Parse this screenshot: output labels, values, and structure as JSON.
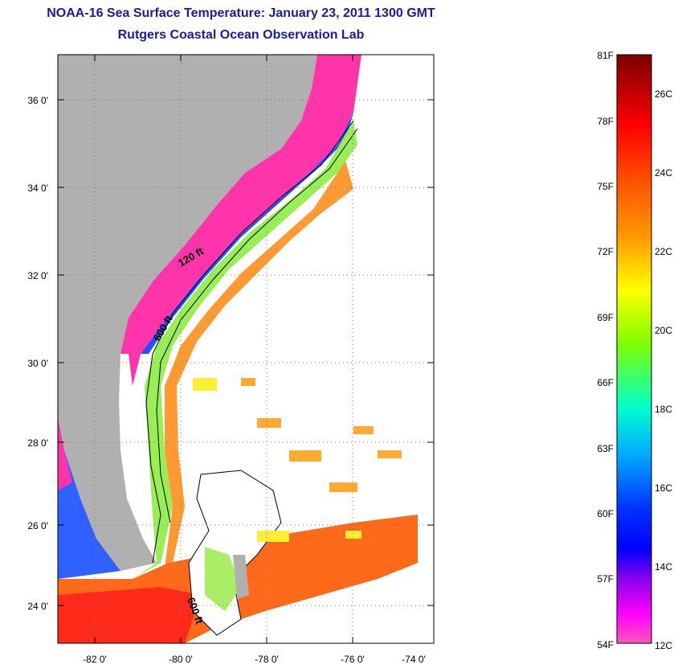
{
  "header": {
    "title": "NOAA-16 Sea Surface Temperature:  January 23, 2011 1300 GMT",
    "subtitle": "Rutgers Coastal Ocean Observation Lab"
  },
  "map": {
    "region": "US Southeast coast and Bahamas",
    "lat_range": [
      23,
      37
    ],
    "lon_range": [
      -83,
      -73
    ],
    "lat_labels": [
      "36 0'",
      "34 0'",
      "32 0'",
      "30 0'",
      "28 0'",
      "26 0'",
      "24 0'"
    ],
    "lon_labels": [
      "-82 0'",
      "-80 0'",
      "-78 0'",
      "-76 0'",
      "-74 0'"
    ],
    "contour_labels": [
      "120 ft",
      "600 ft",
      "600 ft"
    ],
    "grid": "dotted"
  },
  "colorbar": {
    "fahrenheit_labels": [
      "81F",
      "78F",
      "75F",
      "72F",
      "69F",
      "66F",
      "63F",
      "60F",
      "57F",
      "54F"
    ],
    "celsius_labels": [
      "26C",
      "24C",
      "22C",
      "20C",
      "18C",
      "16C",
      "14C",
      "12C"
    ],
    "colors": [
      "#7a0000",
      "#ff0000",
      "#ff7f00",
      "#ffff00",
      "#7fff00",
      "#00ffff",
      "#0080ff",
      "#0000ff",
      "#7f00ff",
      "#ff00ff",
      "#ff44aa"
    ]
  }
}
